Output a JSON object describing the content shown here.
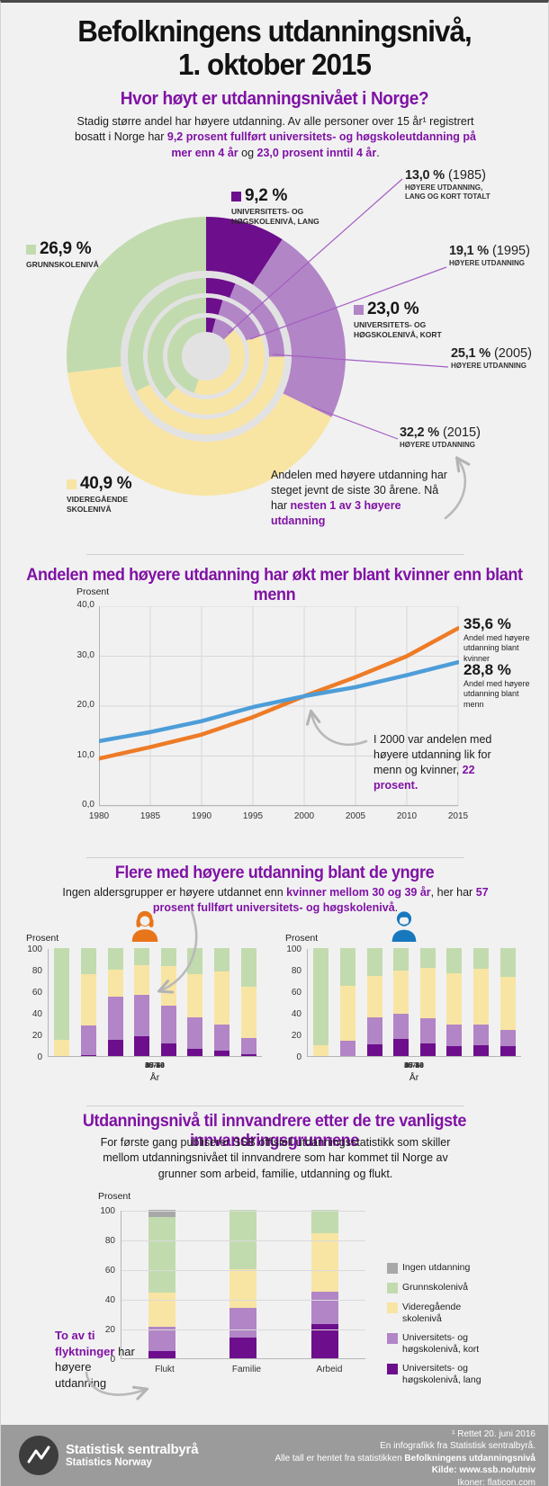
{
  "colors": {
    "heading": "#8012a4",
    "lang": "#6d0f8c",
    "kort": "#b285c6",
    "videregaende": "#f8e5a3",
    "grunnskole": "#c2dbae",
    "ingen": "#a8a8a8",
    "kvinner_line": "#ee7b26",
    "menn_line": "#4d9dd8",
    "callout_line": "#a45ec2",
    "arrow": "#b9b9b9",
    "donut_bg": "#e2e2e3"
  },
  "header": {
    "title_line1": "Befolkningens utdanningsnivå,",
    "title_line2": "1. oktober 2015"
  },
  "section_overview": {
    "heading": "Hvor høyt er utdanningsnivået i Norge?",
    "intro_plain1": "Stadig større andel har høyere utdanning. Av alle personer over 15 år¹ registrert bosatt i Norge har ",
    "intro_hl1": "9,2 prosent fullført universitets- og høgskoleutdanning på mer enn 4 år",
    "intro_plain2": " og ",
    "intro_hl2": "23,0 prosent inntil 4 år",
    "intro_plain3": ".",
    "labels": {
      "lang": {
        "value": "9,2 %",
        "name": "UNIVERSITETS- OG HØGSKOLENIVÅ, LANG"
      },
      "grunnskole": {
        "value": "26,9 %",
        "name": "GRUNNSKOLENIVÅ"
      },
      "kort": {
        "value": "23,0 %",
        "name": "UNIVERSITETS- OG HØGSKOLENIVÅ, KORT"
      },
      "videregaende": {
        "value": "40,9 %",
        "name": "VIDEREGÅENDE SKOLENIVÅ"
      }
    },
    "callouts": [
      {
        "value": "13,0 %",
        "year": " (1985)",
        "desc": "HØYERE UTDANNING, LANG OG KORT TOTALT"
      },
      {
        "value": "19,1 %",
        "year": " (1995)",
        "desc": "HØYERE UTDANNING"
      },
      {
        "value": "25,1 %",
        "year": " (2005)",
        "desc": "HØYERE UTDANNING"
      },
      {
        "value": "32,2 %",
        "year": " (2015)",
        "desc": "HØYERE UTDANNING"
      }
    ],
    "note_plain": "Andelen med høyere utdanning har steget jevnt de siste 30 årene. Nå har ",
    "note_hl": "nesten 1 av 3 høyere utdanning"
  },
  "section_gender": {
    "heading": "Andelen med høyere utdanning har økt mer blant kvinner enn blant menn",
    "axis_title": "Prosent",
    "kvinner_value": "35,6 %",
    "kvinner_label": "Andel med høyere utdanning blant kvinner",
    "menn_value": "28,8 %",
    "menn_label": "Andel med høyere utdanning blant menn",
    "note_plain": "I 2000 var andelen med høyere utdanning lik for menn og kvinner, ",
    "note_hl": "22 prosent."
  },
  "section_age": {
    "heading": "Flere med høyere utdanning blant de yngre",
    "text_plain1": "Ingen aldersgrupper er høyere utdannet enn ",
    "text_hl1": "kvinner mellom 30 og 39 år",
    "text_plain2": ", her har ",
    "text_hl2": "57 prosent fullført universitets- og høgskolenivå",
    "text_plain3": ".",
    "axis_title": "Prosent",
    "x_axis_label": "År"
  },
  "section_immigrants": {
    "heading": "Utdanningsnivå til innvandrere etter de tre vanligste innvandringsgrunnene",
    "text": "For første gang publiserer SSB offisiell utdanningsstatistikk som skiller mellom utdanningsnivået til innvandrere som har kommet til Norge av grunner som arbeid, familie, utdanning og flukt.",
    "axis_title": "Prosent",
    "note_hl": "To av ti flyktninger",
    "note_plain": " har høyere utdanning",
    "legend": [
      {
        "color_key": "ingen",
        "label": "Ingen utdanning"
      },
      {
        "color_key": "grunnskole",
        "label": "Grunnskolenivå"
      },
      {
        "color_key": "videregaende",
        "label": "Videregående skolenivå"
      },
      {
        "color_key": "kort",
        "label": "Universitets- og høgskolenivå, kort"
      },
      {
        "color_key": "lang",
        "label": "Universitets- og høgskolenivå, lang"
      }
    ]
  },
  "footer": {
    "org_name": "Statistisk sentralbyrå",
    "org_name_en": "Statistics Norway",
    "line1": "¹ Rettet 20. juni 2016",
    "line2": "En infografikk fra Statistisk sentralbyrå.",
    "line3_plain": "Alle tall er hentet fra statistikken ",
    "line3_bold": "Befolkningens utdanningsnivå",
    "line4": "Kilde: www.ssb.no/utniv",
    "line5": "Ikoner: flaticon.com"
  },
  "chart_data": [
    {
      "type": "donut_multi_ring",
      "title": "Utdanningsnivå i befolkningen over 15 år, prosent",
      "categories": [
        "Universitets- og høgskolenivå, lang",
        "Universitets- og høgskolenivå, kort",
        "Videregående skolenivå",
        "Grunnskolenivå"
      ],
      "color_keys": [
        "lang",
        "kort",
        "videregaende",
        "grunnskole"
      ],
      "rings": [
        {
          "year": 2015,
          "r0": 95,
          "r1": 155,
          "values": [
            9.2,
            23.0,
            40.9,
            26.9
          ],
          "hoyere_utdanning_total": 32.2
        },
        {
          "year": 2005,
          "r0": 70,
          "r1": 87,
          "values": [
            6.1,
            19.0,
            42.5,
            32.4
          ],
          "hoyere_utdanning_total": 25.1
        },
        {
          "year": 1995,
          "r0": 48,
          "r1": 65,
          "values": [
            4.6,
            14.5,
            43.0,
            37.9
          ],
          "hoyere_utdanning_total": 19.1
        },
        {
          "year": 1985,
          "r0": 27,
          "r1": 43,
          "values": [
            4.0,
            9.0,
            42.0,
            45.0
          ],
          "hoyere_utdanning_total": 13.0
        }
      ]
    },
    {
      "type": "line",
      "title": "Andelen med høyere utdanning har økt mer blant kvinner enn blant menn",
      "ylabel": "Prosent",
      "ylim": [
        0,
        40
      ],
      "y_ticks": [
        40,
        30,
        20,
        10,
        0
      ],
      "y_tick_labels": [
        "40,0",
        "30,0",
        "20,0",
        "10,0",
        "0,0"
      ],
      "x": [
        1980,
        1985,
        1990,
        1995,
        2000,
        2005,
        2010,
        2015
      ],
      "series": [
        {
          "name": "Andel med høyere utdanning blant kvinner",
          "color_key": "kvinner_line",
          "values": [
            9.5,
            11.8,
            14.3,
            17.8,
            22.0,
            25.8,
            30.0,
            35.6
          ]
        },
        {
          "name": "Andel med høyere utdanning blant menn",
          "color_key": "menn_line",
          "values": [
            13.0,
            14.8,
            17.0,
            19.8,
            22.0,
            23.8,
            26.2,
            28.8
          ]
        }
      ],
      "annotation": "I 2000 var andelen med høyere utdanning lik for menn og kvinner, 22 prosent."
    },
    {
      "type": "stacked_bar",
      "group": "Kvinner",
      "ylabel": "Prosent",
      "xlabel": "År",
      "ylim": [
        0,
        100
      ],
      "y_ticks": [
        100,
        80,
        60,
        40,
        20,
        0
      ],
      "categories": [
        "16-19",
        "20-24",
        "25-29",
        "30-39",
        "40-49",
        "50-59",
        "60-66",
        "67+"
      ],
      "color_keys": [
        "lang",
        "kort",
        "videregaende",
        "grunnskole"
      ],
      "series": [
        {
          "name": "Universitets- og høgskolenivå, lang",
          "values": [
            0,
            1,
            15,
            18,
            12,
            7,
            5,
            2
          ]
        },
        {
          "name": "Universitets- og høgskolenivå, kort",
          "values": [
            0,
            27,
            40,
            39,
            35,
            29,
            24,
            15
          ]
        },
        {
          "name": "Videregående skolenivå",
          "values": [
            15,
            48,
            25,
            27,
            36,
            40,
            49,
            47
          ]
        },
        {
          "name": "Grunnskolenivå",
          "values": [
            85,
            24,
            20,
            16,
            17,
            24,
            22,
            36
          ]
        }
      ]
    },
    {
      "type": "stacked_bar",
      "group": "Menn",
      "ylabel": "Prosent",
      "xlabel": "År",
      "ylim": [
        0,
        100
      ],
      "y_ticks": [
        100,
        80,
        60,
        40,
        20,
        0
      ],
      "categories": [
        "16-19",
        "20-24",
        "25-29",
        "30-39",
        "40-49",
        "50-59",
        "60-66",
        "67+"
      ],
      "color_keys": [
        "lang",
        "kort",
        "videregaende",
        "grunnskole"
      ],
      "series": [
        {
          "name": "Universitets- og høgskolenivå, lang",
          "values": [
            0,
            0,
            11,
            16,
            12,
            9,
            10,
            9
          ]
        },
        {
          "name": "Universitets- og høgskolenivå, kort",
          "values": [
            0,
            14,
            25,
            23,
            23,
            20,
            19,
            15
          ]
        },
        {
          "name": "Videregående skolenivå",
          "values": [
            10,
            51,
            38,
            40,
            47,
            48,
            52,
            49
          ]
        },
        {
          "name": "Grunnskolenivå",
          "values": [
            90,
            35,
            26,
            21,
            18,
            23,
            19,
            27
          ]
        }
      ]
    },
    {
      "type": "stacked_bar",
      "group": "Innvandrere etter innvandringsgrunn",
      "ylabel": "Prosent",
      "ylim": [
        0,
        100
      ],
      "y_ticks": [
        100,
        80,
        60,
        40,
        20,
        0
      ],
      "categories": [
        "Flukt",
        "Familie",
        "Arbeid"
      ],
      "color_keys": [
        "lang",
        "kort",
        "videregaende",
        "grunnskole",
        "ingen"
      ],
      "series": [
        {
          "name": "Universitets- og høgskolenivå, lang",
          "values": [
            5,
            14,
            23
          ]
        },
        {
          "name": "Universitets- og høgskolenivå, kort",
          "values": [
            16,
            20,
            22
          ]
        },
        {
          "name": "Videregående skolenivå",
          "values": [
            23,
            26,
            39
          ]
        },
        {
          "name": "Grunnskolenivå",
          "values": [
            51,
            40,
            16
          ]
        },
        {
          "name": "Ingen utdanning",
          "values": [
            5,
            0,
            0
          ]
        }
      ]
    }
  ]
}
